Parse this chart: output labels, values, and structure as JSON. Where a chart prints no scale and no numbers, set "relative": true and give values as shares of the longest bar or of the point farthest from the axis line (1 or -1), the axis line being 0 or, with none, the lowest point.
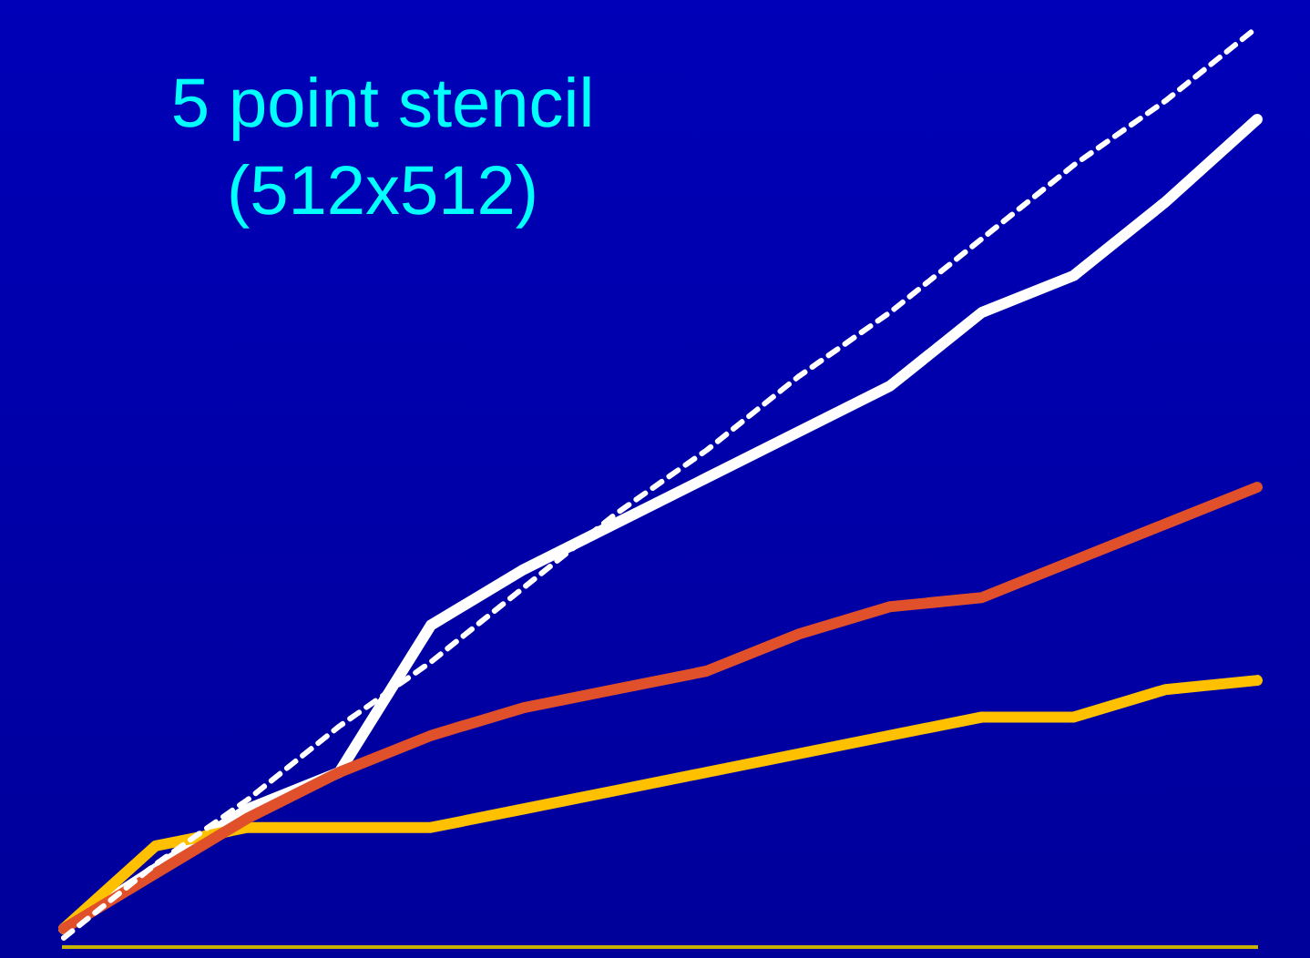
{
  "chart_data": {
    "type": "line",
    "title": "5 point stencil",
    "subtitle": "(512x512)",
    "relative": true,
    "marker": "none",
    "legend": false,
    "categories": [
      null,
      null,
      null,
      null,
      null,
      null,
      null,
      null,
      null,
      null,
      null,
      null,
      null,
      null
    ],
    "series": [
      {
        "color": "#ffffff",
        "line_style": "dashed",
        "values": [
          0.01,
          0.09,
          0.16,
          0.24,
          0.31,
          0.39,
          0.47,
          0.54,
          0.62,
          0.69,
          0.77,
          0.85,
          0.92,
          1.0
        ]
      },
      {
        "color": "#e0502a",
        "values": [
          0.02,
          0.08,
          0.14,
          0.19,
          0.23,
          0.26,
          0.28,
          0.3,
          0.34,
          0.37,
          0.38,
          0.42,
          0.46,
          0.5
        ]
      },
      {
        "color": "#ffc000",
        "values": [
          0.02,
          0.11,
          0.13,
          0.13,
          0.13,
          0.15,
          0.17,
          0.19,
          0.21,
          0.23,
          0.25,
          0.25,
          0.28,
          0.29
        ]
      },
      {
        "color": "#ffffff",
        "values": [
          0.02,
          0.085,
          0.15,
          0.19,
          0.35,
          0.41,
          0.46,
          0.51,
          0.56,
          0.61,
          0.69,
          0.73,
          0.81,
          0.9
        ]
      }
    ]
  }
}
